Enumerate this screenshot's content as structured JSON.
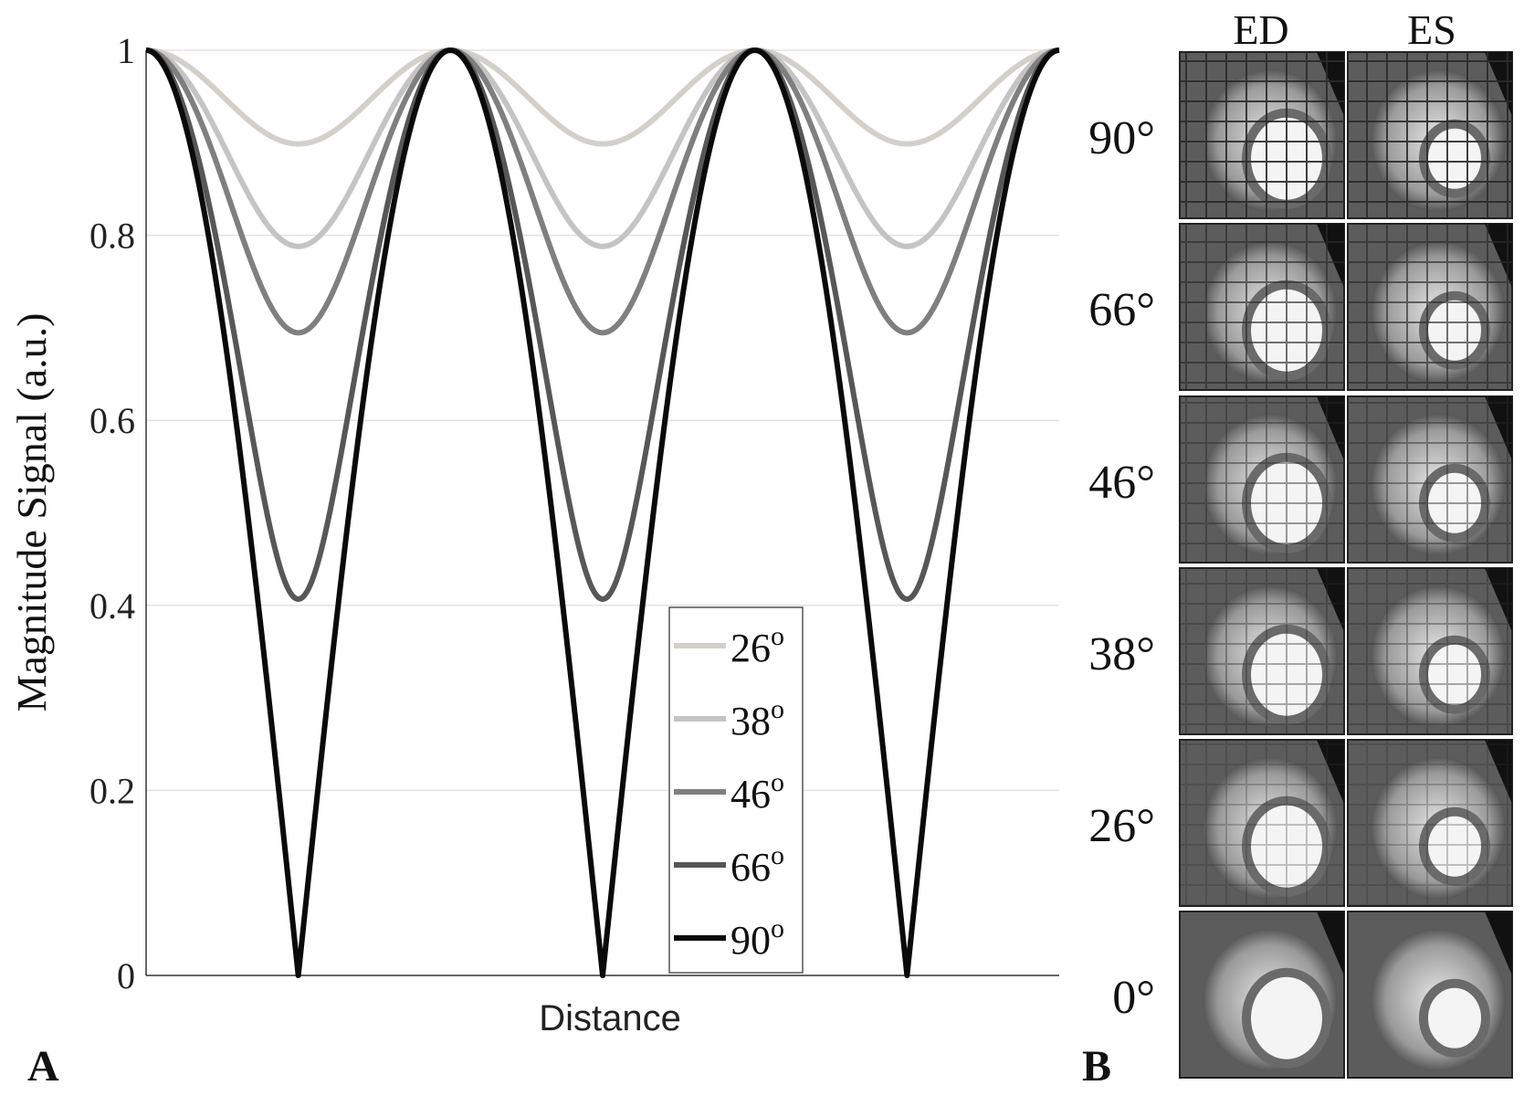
{
  "panel_a_label": "A",
  "panel_b_label": "B",
  "chart_data": {
    "type": "line",
    "title": "",
    "xlabel": "Distance",
    "ylabel": "Magnitude Signal (a.u.)",
    "x_range": [
      0,
      3
    ],
    "ylim": [
      0,
      1
    ],
    "yticks": [
      {
        "value": 0,
        "label": "0"
      },
      {
        "value": 0.2,
        "label": "0.2"
      },
      {
        "value": 0.4,
        "label": "0.4"
      },
      {
        "value": 0.6,
        "label": "0.6"
      },
      {
        "value": 0.8,
        "label": "0.8"
      },
      {
        "value": 1,
        "label": "1"
      }
    ],
    "grid": "horizontal",
    "legend_position": "bottom-right",
    "description_of_curves": "each curve: signal = sqrt(cos^2(pi*x) + (cos(flip)*sin(pi*x))^2), period 1 in x, maxima 1",
    "series": [
      {
        "name": "26",
        "flip_deg": 26,
        "minimum": 0.899,
        "color": "#d3d0cb"
      },
      {
        "name": "38",
        "flip_deg": 38,
        "minimum": 0.788,
        "color": "#c4c4c4"
      },
      {
        "name": "46",
        "flip_deg": 46,
        "minimum": 0.695,
        "color": "#7f7f7f"
      },
      {
        "name": "66",
        "flip_deg": 66,
        "minimum": 0.407,
        "color": "#575757"
      },
      {
        "name": "90",
        "flip_deg": 90,
        "minimum": 0.0,
        "color": "#0a0a0a"
      }
    ],
    "legend_degree_suffix": "o"
  },
  "panel_b": {
    "columns": [
      "ED",
      "ES"
    ],
    "rows": [
      {
        "label": "90°",
        "flip_deg": 90
      },
      {
        "label": "66°",
        "flip_deg": 66
      },
      {
        "label": "46°",
        "flip_deg": 46
      },
      {
        "label": "38°",
        "flip_deg": 38
      },
      {
        "label": "26°",
        "flip_deg": 26
      },
      {
        "label": "0°",
        "flip_deg": 0
      }
    ],
    "image_description": "short-axis cardiac MR images with tagging grid"
  }
}
